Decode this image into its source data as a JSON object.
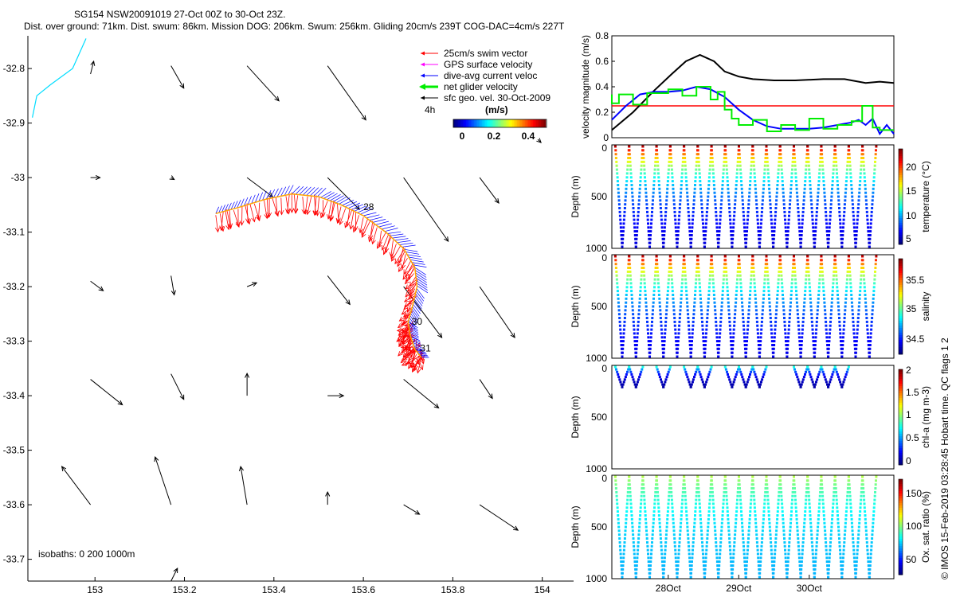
{
  "title": {
    "line1": "SG154 NSW20091019 27-Oct 00Z to 30-Oct 23Z.",
    "line2": "Dist. over ground: 71km. Dist. swum: 86km. Mission DOG: 206km. Swum: 256km. Gliding 20cm/s 239T COG-DAC=4cm/s 227T"
  },
  "footer_credit": "© IMOS 15-Feb-2019 03:28:45 Hobart time. QC flags 1  2",
  "colors": {
    "swim": "#ff0000",
    "gps": "#ff00ff",
    "dac": "#0000ff",
    "net": "#00ee00",
    "geo": "#000000",
    "coast": "#00ddff",
    "track": "#ffa500"
  },
  "chart_data": [
    {
      "id": "map",
      "type": "scatter",
      "title": "SG154 NSW20091019 27-Oct 00Z to 30-Oct 23Z.",
      "xlim": [
        152.85,
        154.07
      ],
      "ylim": [
        -33.74,
        -32.74
      ],
      "xticks": [
        153,
        153.2,
        153.4,
        153.6,
        153.8,
        154
      ],
      "xtick_labels": [
        "153",
        "153.2",
        "153.4",
        "153.6",
        "153.8",
        "154"
      ],
      "yticks": [
        -32.8,
        -32.9,
        -33,
        -33.1,
        -33.2,
        -33.3,
        -33.4,
        -33.5,
        -33.6,
        -33.7
      ],
      "ytick_labels": [
        "-32.8",
        "-32.9",
        "-33",
        "-33.1",
        "-33.2",
        "-33.3",
        "-33.4",
        "-33.5",
        "-33.6",
        "-33.7"
      ],
      "legend": [
        {
          "label": "25cm/s swim vector",
          "color": "#ff0000"
        },
        {
          "label": "GPS surface velocity",
          "color": "#ff00ff"
        },
        {
          "label": "dive-avg current veloc",
          "color": "#0000ff"
        },
        {
          "label": "net glider velocity",
          "color": "#00ee00"
        },
        {
          "label": "sfc geo. vel. 30-Oct-2009",
          "color": "#000000"
        }
      ],
      "legend_extra": "4h",
      "colorbar": {
        "title": "(m/s)",
        "ticks": [
          "0",
          "0.2",
          "0.4"
        ],
        "range": [
          0,
          0.5
        ]
      },
      "isobaths_label": "isobaths: 0   200   1000m",
      "day_labels": [
        {
          "text": "28",
          "lon": 153.6,
          "lat": -33.06
        },
        {
          "text": "30",
          "lon": 153.708,
          "lat": -33.27
        },
        {
          "text": "31",
          "lon": 153.727,
          "lat": -33.319
        }
      ],
      "track": [
        [
          153.27,
          -33.066
        ],
        [
          153.32,
          -33.055
        ],
        [
          153.38,
          -33.04
        ],
        [
          153.44,
          -33.03
        ],
        [
          153.5,
          -33.035
        ],
        [
          153.55,
          -33.05
        ],
        [
          153.6,
          -33.07
        ],
        [
          153.65,
          -33.1
        ],
        [
          153.69,
          -33.13
        ],
        [
          153.715,
          -33.165
        ],
        [
          153.72,
          -33.2
        ],
        [
          153.71,
          -33.235
        ],
        [
          153.7,
          -33.265
        ],
        [
          153.705,
          -33.29
        ],
        [
          153.715,
          -33.315
        ],
        [
          153.73,
          -33.33
        ]
      ],
      "coastline": [
        [
          152.98,
          -32.745
        ],
        [
          152.95,
          -32.8
        ],
        [
          152.9,
          -32.83
        ],
        [
          152.87,
          -32.85
        ],
        [
          152.86,
          -32.89
        ]
      ],
      "geo_vectors": [
        {
          "lon": 152.99,
          "lat": -32.81,
          "u": 0.005,
          "v": 0.02
        },
        {
          "lon": 153.17,
          "lat": -32.795,
          "u": 0.02,
          "v": -0.035
        },
        {
          "lon": 153.34,
          "lat": -32.795,
          "u": 0.05,
          "v": -0.055
        },
        {
          "lon": 153.52,
          "lat": -32.795,
          "u": 0.06,
          "v": -0.085
        },
        {
          "lon": 153.99,
          "lat": -32.93,
          "u": 0.005,
          "v": -0.005
        },
        {
          "lon": 152.99,
          "lat": -33.0,
          "u": 0.015,
          "v": 0.0
        },
        {
          "lon": 153.17,
          "lat": -33.0,
          "u": 0.005,
          "v": -0.003
        },
        {
          "lon": 153.34,
          "lat": -33.0,
          "u": 0.04,
          "v": -0.03
        },
        {
          "lon": 153.52,
          "lat": -33.0,
          "u": 0.05,
          "v": -0.05
        },
        {
          "lon": 153.69,
          "lat": -33.0,
          "u": 0.07,
          "v": -0.1
        },
        {
          "lon": 153.86,
          "lat": -33.0,
          "u": 0.03,
          "v": -0.04
        },
        {
          "lon": 152.99,
          "lat": -33.19,
          "u": 0.02,
          "v": -0.015
        },
        {
          "lon": 153.17,
          "lat": -33.18,
          "u": 0.005,
          "v": -0.03
        },
        {
          "lon": 153.34,
          "lat": -33.2,
          "u": 0.015,
          "v": 0.006
        },
        {
          "lon": 153.52,
          "lat": -33.18,
          "u": 0.035,
          "v": -0.045
        },
        {
          "lon": 153.69,
          "lat": -33.2,
          "u": 0.06,
          "v": -0.08
        },
        {
          "lon": 153.86,
          "lat": -33.2,
          "u": 0.055,
          "v": -0.08
        },
        {
          "lon": 152.99,
          "lat": -33.37,
          "u": 0.05,
          "v": -0.04
        },
        {
          "lon": 153.17,
          "lat": -33.36,
          "u": 0.02,
          "v": -0.04
        },
        {
          "lon": 153.34,
          "lat": -33.4,
          "u": 0.0,
          "v": 0.035
        },
        {
          "lon": 153.52,
          "lat": -33.4,
          "u": 0.025,
          "v": 0.0
        },
        {
          "lon": 153.69,
          "lat": -33.37,
          "u": 0.055,
          "v": -0.045
        },
        {
          "lon": 153.86,
          "lat": -33.37,
          "u": 0.02,
          "v": -0.03
        },
        {
          "lon": 152.99,
          "lat": -33.6,
          "u": -0.045,
          "v": 0.06
        },
        {
          "lon": 153.17,
          "lat": -33.6,
          "u": -0.025,
          "v": 0.075
        },
        {
          "lon": 153.34,
          "lat": -33.6,
          "u": -0.01,
          "v": 0.06
        },
        {
          "lon": 153.52,
          "lat": -33.6,
          "u": 0.0,
          "v": 0.02
        },
        {
          "lon": 153.69,
          "lat": -33.6,
          "u": 0.025,
          "v": -0.015
        },
        {
          "lon": 153.86,
          "lat": -33.6,
          "u": 0.06,
          "v": -0.04
        },
        {
          "lon": 153.17,
          "lat": -33.74,
          "u": 0.01,
          "v": 0.02
        }
      ]
    },
    {
      "id": "velocity",
      "type": "line",
      "ylabel": "velocity magnitude (m/s)",
      "xlim": [
        27.0,
        31.0
      ],
      "ylim": [
        0,
        0.8
      ],
      "yticks": [
        0,
        0.2,
        0.4,
        0.6,
        0.8
      ],
      "ytick_labels": [
        "0",
        "0.2",
        "0.4",
        "0.6",
        "0.8"
      ],
      "reference_line": 0.25,
      "series": [
        {
          "name": "sfc geo. vel.",
          "color": "#000000",
          "x": [
            27.0,
            27.3,
            27.6,
            27.85,
            28.05,
            28.25,
            28.45,
            28.6,
            28.8,
            29.0,
            29.3,
            29.6,
            30.0,
            30.3,
            30.6,
            30.8,
            31.0
          ],
          "y": [
            0.06,
            0.2,
            0.37,
            0.5,
            0.6,
            0.65,
            0.6,
            0.52,
            0.48,
            0.46,
            0.45,
            0.45,
            0.46,
            0.46,
            0.43,
            0.44,
            0.43
          ]
        },
        {
          "name": "dive-avg current",
          "color": "#0000ff",
          "x": [
            27.0,
            27.2,
            27.4,
            27.6,
            27.8,
            28.0,
            28.2,
            28.4,
            28.6,
            28.8,
            29.0,
            29.2,
            29.4,
            29.6,
            29.8,
            30.0,
            30.2,
            30.4,
            30.5,
            30.6,
            30.7,
            30.8,
            30.9,
            31.0
          ],
          "y": [
            0.14,
            0.25,
            0.34,
            0.36,
            0.36,
            0.37,
            0.4,
            0.38,
            0.32,
            0.22,
            0.14,
            0.09,
            0.07,
            0.07,
            0.07,
            0.08,
            0.1,
            0.12,
            0.14,
            0.1,
            0.15,
            0.03,
            0.1,
            0.03
          ]
        },
        {
          "name": "net glider",
          "color": "#00ee00",
          "x": [
            27.0,
            27.0,
            27.1,
            27.1,
            27.3,
            27.3,
            27.5,
            27.5,
            27.8,
            27.8,
            28.0,
            28.0,
            28.2,
            28.2,
            28.4,
            28.4,
            28.5,
            28.5,
            28.6,
            28.6,
            28.7,
            28.7,
            28.8,
            28.8,
            29.0,
            29.0,
            29.2,
            29.2,
            29.4,
            29.4,
            29.6,
            29.6,
            29.8,
            29.8,
            30.0,
            30.0,
            30.2,
            30.2,
            30.4,
            30.4,
            30.55,
            30.55,
            30.7,
            30.7,
            30.8,
            30.8,
            31.0
          ],
          "y": [
            0.34,
            0.27,
            0.27,
            0.34,
            0.34,
            0.26,
            0.26,
            0.35,
            0.35,
            0.38,
            0.38,
            0.33,
            0.33,
            0.4,
            0.4,
            0.3,
            0.3,
            0.36,
            0.36,
            0.22,
            0.22,
            0.15,
            0.15,
            0.1,
            0.1,
            0.14,
            0.14,
            0.05,
            0.05,
            0.1,
            0.1,
            0.06,
            0.06,
            0.15,
            0.15,
            0.07,
            0.07,
            0.1,
            0.1,
            0.13,
            0.13,
            0.25,
            0.25,
            0.08,
            0.08,
            0.06,
            0.06
          ]
        }
      ]
    },
    {
      "id": "temperature",
      "type": "scatter",
      "ylabel": "Depth (m)",
      "yticks": [
        "0",
        "500",
        "1000"
      ],
      "colorbar_label": "temperature (°C)",
      "colorbar_ticks": [
        "5",
        "10",
        "15",
        "20"
      ],
      "range": [
        4,
        23
      ],
      "profiles": {
        "xstart": 27.05,
        "xend": 30.75,
        "count": 19,
        "max_depth": 1000,
        "surface_value": 22,
        "deep_value": 5
      }
    },
    {
      "id": "salinity",
      "type": "scatter",
      "ylabel": "Depth (m)",
      "yticks": [
        "0",
        "500",
        "1000"
      ],
      "colorbar_label": "salinity",
      "colorbar_ticks": [
        "34.5",
        "35",
        "35.5"
      ],
      "range": [
        34.3,
        35.8
      ],
      "profiles": {
        "xstart": 27.05,
        "xend": 30.75,
        "count": 19,
        "max_depth": 1000,
        "surface_value": 35.7,
        "deep_value": 34.4
      }
    },
    {
      "id": "chla",
      "type": "scatter",
      "ylabel": "Depth (m)",
      "yticks": [
        "0",
        "500",
        "1000"
      ],
      "colorbar_label": "chl-a (mg m-3)",
      "colorbar_ticks": [
        "0",
        "0.5",
        "1",
        "1.5",
        "2"
      ],
      "range": [
        0,
        2
      ],
      "profiles": {
        "xstart": 27.05,
        "xend": 30.75,
        "count": 19,
        "max_depth": 200,
        "surface_value": 0.8,
        "deep_value": 0.05
      }
    },
    {
      "id": "oxygen",
      "type": "scatter",
      "ylabel": "Depth (m)",
      "yticks": [
        "0",
        "500",
        "1000"
      ],
      "colorbar_label": "Ox. sat. ratio (%)",
      "colorbar_ticks": [
        "50",
        "100",
        "150"
      ],
      "range": [
        20,
        175
      ],
      "profiles": {
        "xstart": 27.05,
        "xend": 30.75,
        "count": 19,
        "max_depth": 1000,
        "surface_value": 105,
        "deep_value": 65
      },
      "xticks": [
        27.8,
        28.8,
        29.8
      ],
      "xtick_labels": [
        "28Oct",
        "29Oct",
        "30Oct"
      ]
    }
  ]
}
